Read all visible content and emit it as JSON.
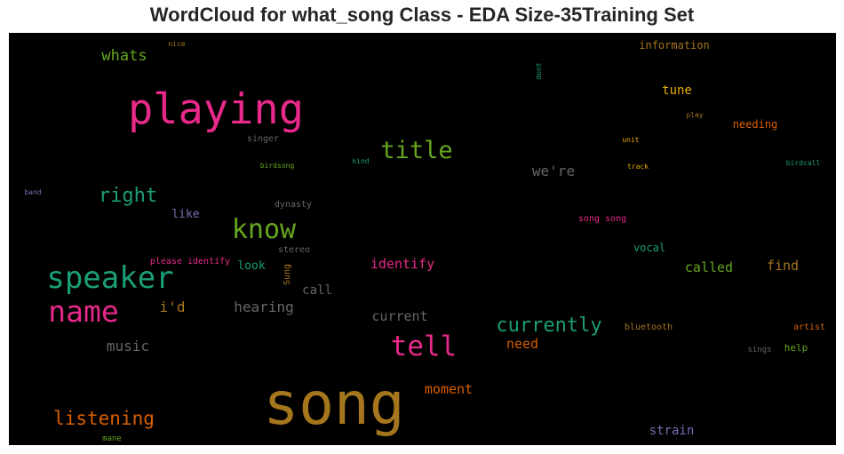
{
  "title": "WordCloud for what_song Class - EDA Size-35Training Set",
  "chart_data": {
    "type": "wordcloud",
    "background": "#000000",
    "words": [
      {
        "text": "song",
        "weight": 100,
        "color": "#a6761d"
      },
      {
        "text": "playing",
        "weight": 78,
        "color": "#e7298a"
      },
      {
        "text": "speaker",
        "weight": 56,
        "color": "#1b9e77"
      },
      {
        "text": "name",
        "weight": 55,
        "color": "#e7298a"
      },
      {
        "text": "know",
        "weight": 50,
        "color": "#66a61e"
      },
      {
        "text": "tell",
        "weight": 51,
        "color": "#e7298a"
      },
      {
        "text": "title",
        "weight": 45,
        "color": "#66a61e"
      },
      {
        "text": "currently",
        "weight": 37,
        "color": "#1b9e77"
      },
      {
        "text": "right",
        "weight": 37,
        "color": "#1b9e77"
      },
      {
        "text": "listening",
        "weight": 35,
        "color": "#d95f02"
      },
      {
        "text": "we're",
        "weight": 27,
        "color": "#666666"
      },
      {
        "text": "whats",
        "weight": 28,
        "color": "#66a61e"
      },
      {
        "text": "hearing",
        "weight": 26,
        "color": "#666666"
      },
      {
        "text": "i'd",
        "weight": 26,
        "color": "#a6761d"
      },
      {
        "text": "music",
        "weight": 26,
        "color": "#666666"
      },
      {
        "text": "current",
        "weight": 24,
        "color": "#666666"
      },
      {
        "text": "moment",
        "weight": 24,
        "color": "#d95f02"
      },
      {
        "text": "identify",
        "weight": 24,
        "color": "#e7298a"
      },
      {
        "text": "called",
        "weight": 24,
        "color": "#66a61e"
      },
      {
        "text": "need",
        "weight": 24,
        "color": "#d95f02"
      },
      {
        "text": "find",
        "weight": 24,
        "color": "#a6761d"
      },
      {
        "text": "tune",
        "weight": 23,
        "color": "#e6ab02"
      },
      {
        "text": "call",
        "weight": 23,
        "color": "#666666"
      },
      {
        "text": "strain",
        "weight": 23,
        "color": "#7570b3"
      },
      {
        "text": "like",
        "weight": 22,
        "color": "#7570b3"
      },
      {
        "text": "look",
        "weight": 21,
        "color": "#1b9e77"
      },
      {
        "text": "needing",
        "weight": 20,
        "color": "#d95f02"
      },
      {
        "text": "vocal",
        "weight": 19,
        "color": "#1b9e77"
      },
      {
        "text": "information",
        "weight": 19,
        "color": "#a6761d"
      },
      {
        "text": "help",
        "weight": 18,
        "color": "#66a61e"
      },
      {
        "text": "dynasty",
        "weight": 17,
        "color": "#666666"
      },
      {
        "text": "please identify",
        "weight": 16,
        "color": "#e7298a"
      },
      {
        "text": "song song",
        "weight": 16,
        "color": "#e7298a"
      },
      {
        "text": "stereo",
        "weight": 16,
        "color": "#666666"
      },
      {
        "text": "singer",
        "weight": 16,
        "color": "#666666"
      },
      {
        "text": "bluetooth",
        "weight": 16,
        "color": "#a6761d"
      },
      {
        "text": "artist",
        "weight": 16,
        "color": "#d95f02"
      },
      {
        "text": "sings",
        "weight": 15,
        "color": "#666666"
      },
      {
        "text": "Sung",
        "weight": 15,
        "color": "#a6761d"
      },
      {
        "text": "mane",
        "weight": 15,
        "color": "#66a61e"
      },
      {
        "text": "birdsong",
        "weight": 14,
        "color": "#66a61e"
      },
      {
        "text": "birdcall",
        "weight": 14,
        "color": "#1b9e77"
      },
      {
        "text": "track",
        "weight": 14,
        "color": "#e6ab02"
      },
      {
        "text": "unit",
        "weight": 13,
        "color": "#e6ab02"
      },
      {
        "text": "play",
        "weight": 13,
        "color": "#a6761d"
      },
      {
        "text": "kind",
        "weight": 13,
        "color": "#1b9e77"
      },
      {
        "text": "band",
        "weight": 13,
        "color": "#7570b3"
      },
      {
        "text": "nice",
        "weight": 13,
        "color": "#a6761d"
      },
      {
        "text": "dont",
        "weight": 13,
        "color": "#1b9e77"
      }
    ]
  }
}
